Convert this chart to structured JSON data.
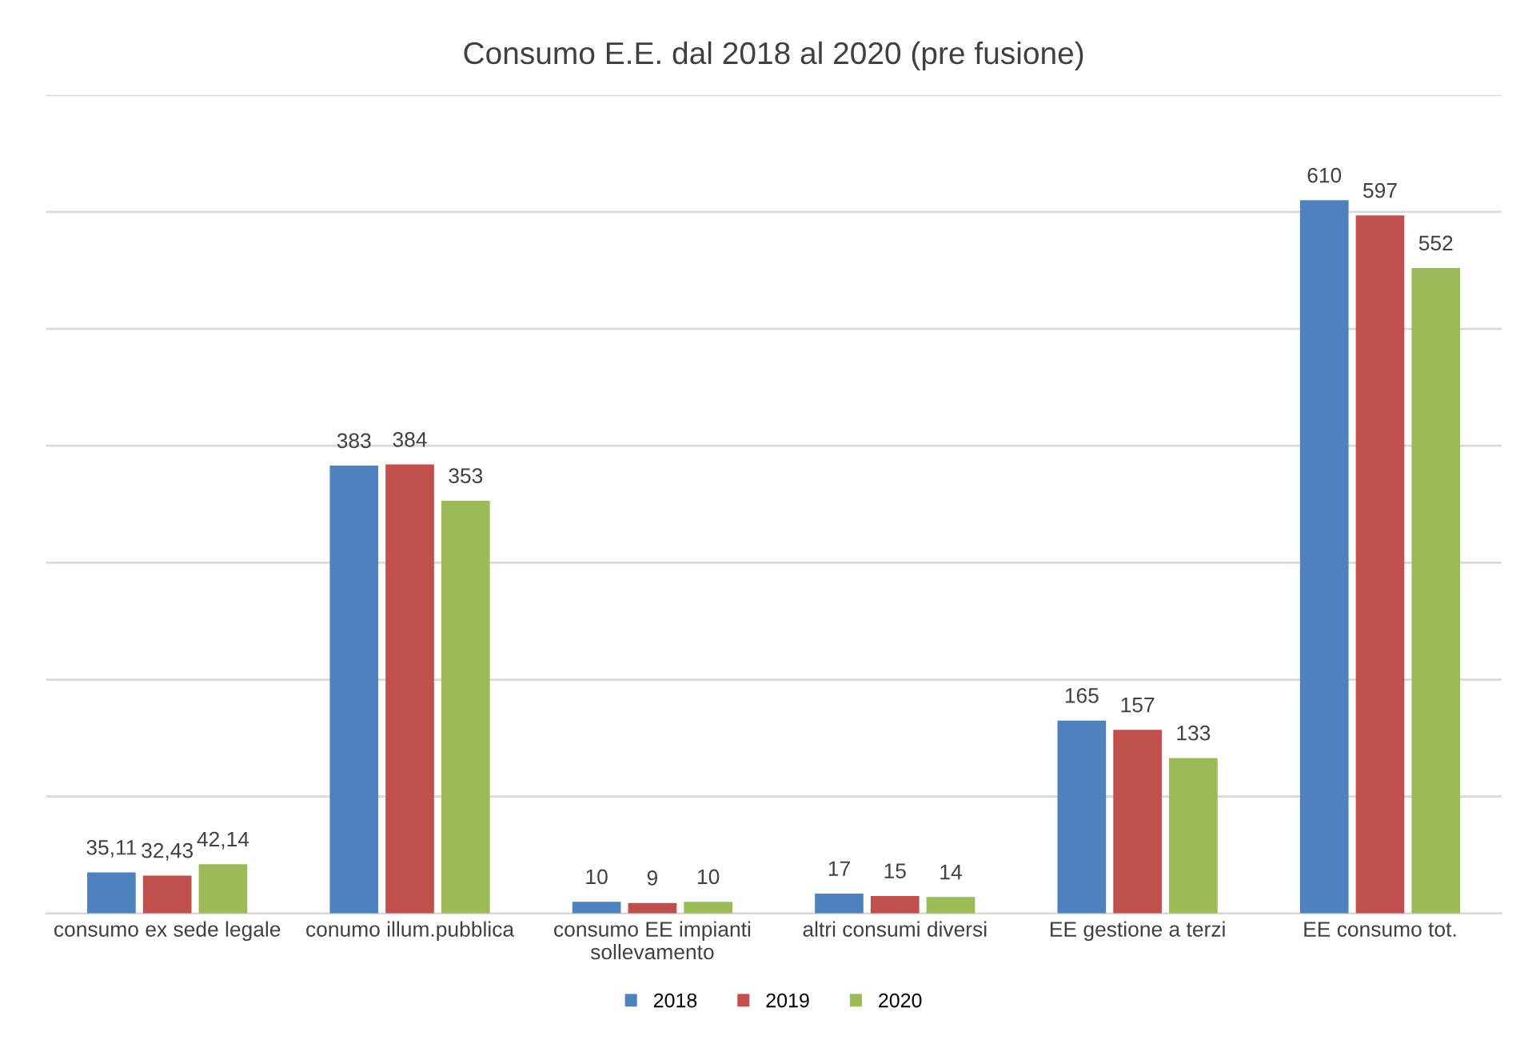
{
  "chart_data": {
    "type": "bar",
    "title": "Consumo E.E. dal 2018 al 2020 (pre fusione)",
    "categories": [
      "consumo ex sede legale",
      "conumo illum.pubblica",
      "consumo EE impianti\nsollevamento",
      "altri consumi diversi",
      "EE gestione a terzi",
      "EE consumo tot."
    ],
    "series": [
      {
        "name": "2018",
        "color": "#4f81bd",
        "values": [
          35.11,
          383,
          10,
          17,
          165,
          610
        ],
        "value_labels": [
          "35,11",
          "383",
          "10",
          "17",
          "165",
          "610"
        ]
      },
      {
        "name": "2019",
        "color": "#c0504d",
        "values": [
          32.43,
          384,
          9,
          15,
          157,
          597
        ],
        "value_labels": [
          "32,43",
          "384",
          "9",
          "15",
          "157",
          "597"
        ]
      },
      {
        "name": "2020",
        "color": "#9bbb59",
        "values": [
          42.14,
          353,
          10,
          14,
          133,
          552
        ],
        "value_labels": [
          "42,14",
          "353",
          "10",
          "14",
          "133",
          "552"
        ]
      }
    ],
    "ylim": [
      0,
      700
    ],
    "yticks": [
      {
        "value": 0,
        "label": null
      },
      {
        "value": 100,
        "label": null
      },
      {
        "value": 200,
        "label": null
      },
      {
        "value": 300,
        "label": null
      },
      {
        "value": 400,
        "label": null
      },
      {
        "value": 500,
        "label": null
      },
      {
        "value": 600,
        "label": null
      },
      {
        "value": 700,
        "label": null
      }
    ],
    "grid": "y",
    "legend": "bottom",
    "tick_labels": "x"
  }
}
